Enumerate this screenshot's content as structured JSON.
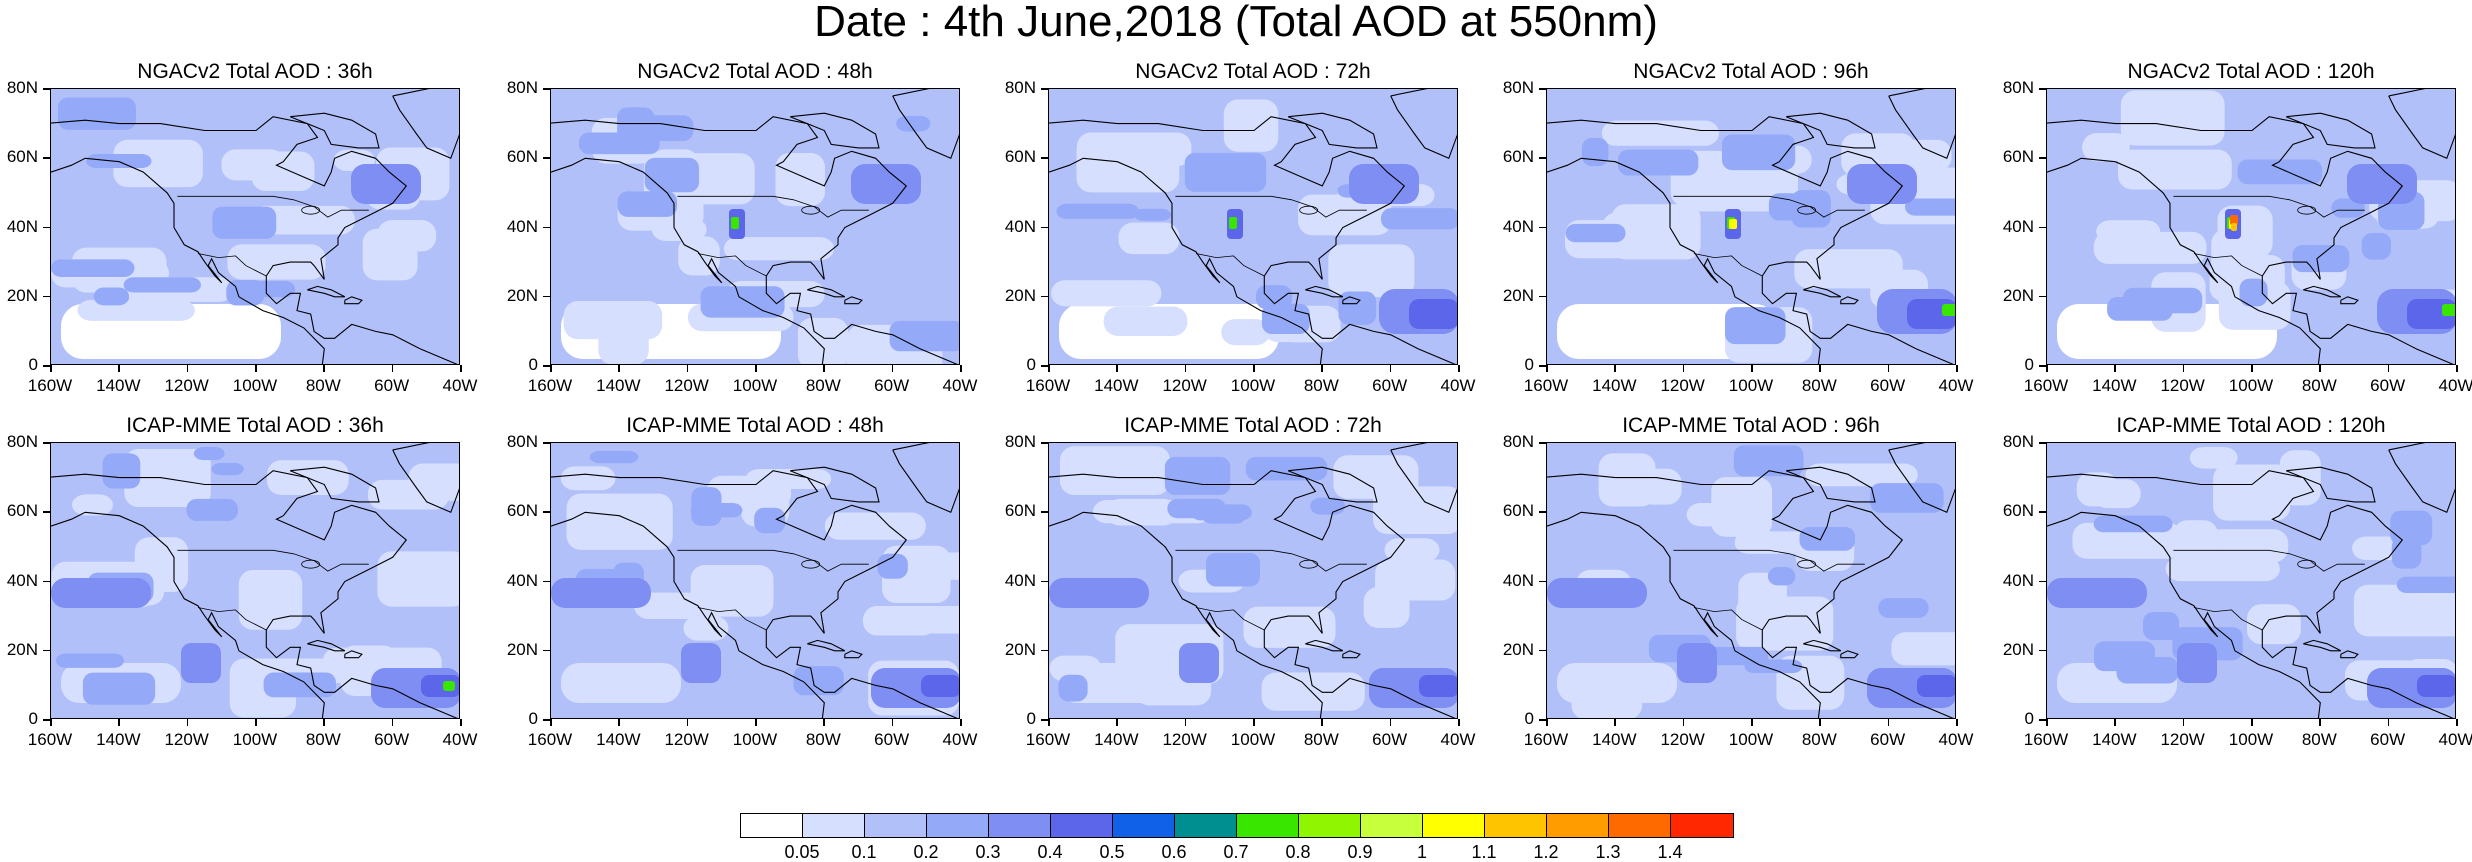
{
  "title": "Date : 4th June,2018 (Total AOD at 550nm)",
  "panels": [
    {
      "title": "NGACv2 Total AOD : 36h",
      "model": "NGACv2",
      "lead_hour": 36
    },
    {
      "title": "NGACv2 Total AOD : 48h",
      "model": "NGACv2",
      "lead_hour": 48
    },
    {
      "title": "NGACv2 Total AOD : 72h",
      "model": "NGACv2",
      "lead_hour": 72
    },
    {
      "title": "NGACv2 Total AOD : 96h",
      "model": "NGACv2",
      "lead_hour": 96
    },
    {
      "title": "NGACv2 Total AOD : 120h",
      "model": "NGACv2",
      "lead_hour": 120
    },
    {
      "title": "ICAP-MME Total AOD : 36h",
      "model": "ICAP-MME",
      "lead_hour": 36
    },
    {
      "title": "ICAP-MME Total AOD : 48h",
      "model": "ICAP-MME",
      "lead_hour": 48
    },
    {
      "title": "ICAP-MME Total AOD : 72h",
      "model": "ICAP-MME",
      "lead_hour": 72
    },
    {
      "title": "ICAP-MME Total AOD : 96h",
      "model": "ICAP-MME",
      "lead_hour": 96
    },
    {
      "title": "ICAP-MME Total AOD : 120h",
      "model": "ICAP-MME",
      "lead_hour": 120
    }
  ],
  "axes": {
    "lat_labels": [
      "80N",
      "60N",
      "40N",
      "20N",
      "0"
    ],
    "lon_labels": [
      "160W",
      "140W",
      "120W",
      "100W",
      "80W",
      "60W",
      "40W"
    ]
  },
  "colorbar": {
    "labels": [
      "0.05",
      "0.1",
      "0.2",
      "0.3",
      "0.4",
      "0.5",
      "0.6",
      "0.7",
      "0.8",
      "0.9",
      "1",
      "1.1",
      "1.2",
      "1.3",
      "1.4"
    ],
    "colors": [
      "#ffffff",
      "#d6dffd",
      "#b2c0fa",
      "#94aaf8",
      "#7f8ef3",
      "#5c66ea",
      "#1060e8",
      "#008f90",
      "#39e600",
      "#8ff500",
      "#c7ff3c",
      "#ffff00",
      "#ffc400",
      "#ff9c00",
      "#ff6a00",
      "#ff2800"
    ]
  }
}
